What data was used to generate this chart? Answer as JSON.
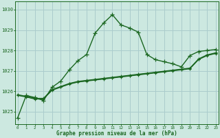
{
  "xlabel": "Graphe pression niveau de la mer (hPa)",
  "bg_color": "#cce8e0",
  "grid_color": "#aacccc",
  "line_color": "#1a6620",
  "x_ticks": [
    0,
    1,
    2,
    3,
    4,
    5,
    6,
    7,
    8,
    9,
    10,
    11,
    12,
    13,
    14,
    15,
    16,
    17,
    18,
    19,
    20,
    21,
    22,
    23
  ],
  "y_ticks": [
    1025,
    1026,
    1027,
    1028,
    1029,
    1030
  ],
  "ylim": [
    1024.4,
    1030.4
  ],
  "xlim": [
    -0.3,
    23.3
  ],
  "series1": [
    1024.7,
    1025.8,
    1025.7,
    1025.55,
    1026.2,
    1026.5,
    1027.05,
    1027.5,
    1027.8,
    1028.85,
    1029.35,
    1029.75,
    1029.25,
    1029.1,
    1028.9,
    1027.8,
    1027.55,
    1027.45,
    1027.35,
    1027.2,
    1027.75,
    1027.95,
    1028.0,
    1028.05
  ],
  "series2": [
    1025.8,
    1025.72,
    1025.62,
    1025.62,
    1026.05,
    1026.2,
    1026.35,
    1026.45,
    1026.5,
    1026.55,
    1026.6,
    1026.65,
    1026.7,
    1026.75,
    1026.8,
    1026.85,
    1026.9,
    1026.95,
    1027.0,
    1027.05,
    1027.1,
    1027.55,
    1027.75,
    1027.85
  ],
  "series3": [
    1025.82,
    1025.74,
    1025.64,
    1025.64,
    1026.07,
    1026.22,
    1026.37,
    1026.47,
    1026.52,
    1026.57,
    1026.62,
    1026.67,
    1026.72,
    1026.77,
    1026.82,
    1026.87,
    1026.92,
    1026.97,
    1027.02,
    1027.07,
    1027.12,
    1027.57,
    1027.77,
    1027.87
  ],
  "series4": [
    1025.84,
    1025.76,
    1025.66,
    1025.66,
    1026.09,
    1026.24,
    1026.39,
    1026.49,
    1026.54,
    1026.59,
    1026.64,
    1026.69,
    1026.74,
    1026.79,
    1026.84,
    1026.89,
    1026.94,
    1026.99,
    1027.04,
    1027.09,
    1027.14,
    1027.59,
    1027.79,
    1027.89
  ]
}
